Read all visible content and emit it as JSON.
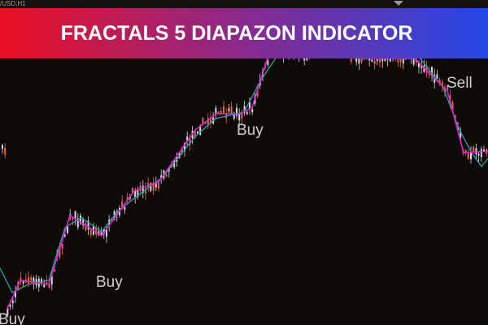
{
  "symbol_label": "/USD,H1",
  "banner": {
    "title": "FRACTALS 5 DIAPAZON INDICATOR"
  },
  "signals": [
    {
      "label": "Buy"
    },
    {
      "label": "Buy"
    },
    {
      "label": "Buy"
    },
    {
      "label": "Sell"
    }
  ]
}
